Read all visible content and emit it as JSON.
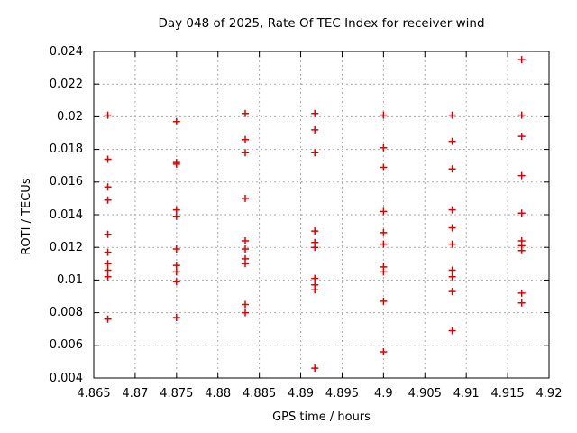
{
  "window": {
    "background": "#ffffff"
  },
  "chart_data": {
    "type": "scatter",
    "title": "Day 048 of 2025, Rate Of TEC Index for receiver wind",
    "xlabel": "GPS time / hours",
    "ylabel": "ROTI / TECUs",
    "xlim": [
      4.865,
      4.92
    ],
    "ylim": [
      0.004,
      0.024
    ],
    "xticks": [
      4.865,
      4.87,
      4.875,
      4.88,
      4.885,
      4.89,
      4.895,
      4.9,
      4.905,
      4.91,
      4.915,
      4.92
    ],
    "xtick_labels": [
      "4.865",
      "4.87",
      "4.875",
      "4.88",
      "4.885",
      "4.89",
      "4.895",
      "4.9",
      "4.905",
      "4.91",
      "4.915",
      "4.92"
    ],
    "yticks": [
      0.004,
      0.006,
      0.008,
      0.01,
      0.012,
      0.014,
      0.016,
      0.018,
      0.02,
      0.022,
      0.024
    ],
    "ytick_labels": [
      "0.004",
      "0.006",
      "0.008",
      "0.01",
      "0.012",
      "0.014",
      "0.016",
      "0.018",
      "0.02",
      "0.022",
      "0.024"
    ],
    "grid": true,
    "legend": "none",
    "marker": "plus",
    "marker_color": "#e00000",
    "grid_color": "#aaaaaa",
    "axis_color": "#000000",
    "series": [
      {
        "name": "ROTI",
        "points": [
          [
            4.8667,
            0.0201
          ],
          [
            4.8667,
            0.0174
          ],
          [
            4.8667,
            0.0157
          ],
          [
            4.8667,
            0.0149
          ],
          [
            4.8667,
            0.0128
          ],
          [
            4.8667,
            0.0117
          ],
          [
            4.8667,
            0.011
          ],
          [
            4.8667,
            0.0106
          ],
          [
            4.8667,
            0.0102
          ],
          [
            4.8667,
            0.0076
          ],
          [
            4.875,
            0.0197
          ],
          [
            4.875,
            0.0172
          ],
          [
            4.875,
            0.0171
          ],
          [
            4.875,
            0.0143
          ],
          [
            4.875,
            0.0139
          ],
          [
            4.875,
            0.0119
          ],
          [
            4.875,
            0.0109
          ],
          [
            4.875,
            0.0105
          ],
          [
            4.875,
            0.0099
          ],
          [
            4.875,
            0.0077
          ],
          [
            4.8833,
            0.0202
          ],
          [
            4.8833,
            0.0186
          ],
          [
            4.8833,
            0.0178
          ],
          [
            4.8833,
            0.015
          ],
          [
            4.8833,
            0.0124
          ],
          [
            4.8833,
            0.0119
          ],
          [
            4.8833,
            0.0113
          ],
          [
            4.8833,
            0.011
          ],
          [
            4.8833,
            0.0085
          ],
          [
            4.8833,
            0.008
          ],
          [
            4.8917,
            0.0202
          ],
          [
            4.8917,
            0.0192
          ],
          [
            4.8917,
            0.0178
          ],
          [
            4.8917,
            0.013
          ],
          [
            4.8917,
            0.0123
          ],
          [
            4.8917,
            0.012
          ],
          [
            4.8917,
            0.0101
          ],
          [
            4.8917,
            0.0097
          ],
          [
            4.8917,
            0.0094
          ],
          [
            4.8917,
            0.0046
          ],
          [
            4.9,
            0.0201
          ],
          [
            4.9,
            0.0181
          ],
          [
            4.9,
            0.0169
          ],
          [
            4.9,
            0.0142
          ],
          [
            4.9,
            0.0129
          ],
          [
            4.9,
            0.0122
          ],
          [
            4.9,
            0.0108
          ],
          [
            4.9,
            0.0105
          ],
          [
            4.9,
            0.0087
          ],
          [
            4.9,
            0.0056
          ],
          [
            4.9083,
            0.0201
          ],
          [
            4.9083,
            0.0185
          ],
          [
            4.9083,
            0.0168
          ],
          [
            4.9083,
            0.0143
          ],
          [
            4.9083,
            0.0132
          ],
          [
            4.9083,
            0.0122
          ],
          [
            4.9083,
            0.0106
          ],
          [
            4.9083,
            0.0102
          ],
          [
            4.9083,
            0.0093
          ],
          [
            4.9083,
            0.0069
          ],
          [
            4.9167,
            0.0235
          ],
          [
            4.9167,
            0.0201
          ],
          [
            4.9167,
            0.0188
          ],
          [
            4.9167,
            0.0164
          ],
          [
            4.9167,
            0.0141
          ],
          [
            4.9167,
            0.0124
          ],
          [
            4.9167,
            0.0121
          ],
          [
            4.9167,
            0.0118
          ],
          [
            4.9167,
            0.0092
          ],
          [
            4.9167,
            0.0086
          ]
        ]
      }
    ]
  }
}
